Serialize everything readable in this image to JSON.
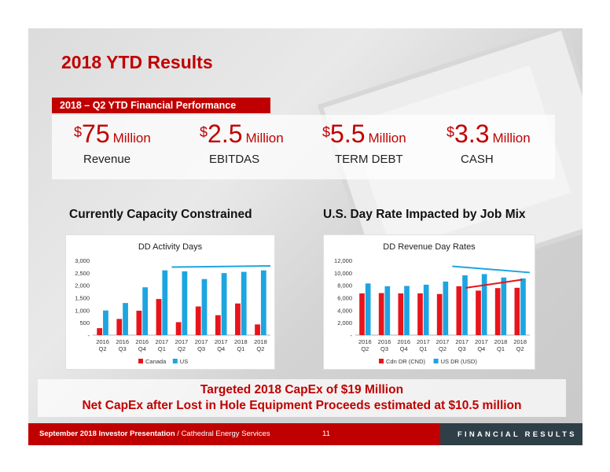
{
  "slide": {
    "title": "2018 YTD Results",
    "section_label": "2018 – Q2 YTD Financial Performance"
  },
  "kpis": [
    {
      "sign": "$",
      "value": "75",
      "unit": "Million",
      "label": "Revenue"
    },
    {
      "sign": "$",
      "value": "2.5",
      "unit": "Million",
      "label": "EBITDAS"
    },
    {
      "sign": "$",
      "value": "5.5",
      "unit": "Million",
      "label": "TERM DEBT"
    },
    {
      "sign": "$",
      "value": "3.3",
      "unit": "Million",
      "label": "CASH"
    }
  ],
  "subtitles": {
    "left": "Currently Capacity Constrained",
    "right": "U.S. Day Rate Impacted by Job Mix"
  },
  "chart_data": [
    {
      "type": "bar",
      "title": "DD Activity Days",
      "categories": [
        [
          "2016",
          "Q2"
        ],
        [
          "2016",
          "Q3"
        ],
        [
          "2016",
          "Q4"
        ],
        [
          "2017",
          "Q1"
        ],
        [
          "2017",
          "Q2"
        ],
        [
          "2017",
          "Q3"
        ],
        [
          "2017",
          "Q4"
        ],
        [
          "2018",
          "Q1"
        ],
        [
          "2018",
          "Q2"
        ]
      ],
      "yticks": [
        "-",
        "500",
        "1,000",
        "1,500",
        "2,000",
        "2,500",
        "3,000"
      ],
      "ylim": [
        0,
        3000
      ],
      "series": [
        {
          "name": "Canada",
          "color": "#e8141b",
          "values": [
            280,
            650,
            980,
            1450,
            520,
            1150,
            800,
            1270,
            430
          ]
        },
        {
          "name": "US",
          "color": "#1ea5e0",
          "values": [
            990,
            1290,
            1920,
            2600,
            2560,
            2250,
            2490,
            2540,
            2600
          ]
        }
      ],
      "trendlines": [
        {
          "color": "#1ea5e0",
          "from": [
            4,
            2730
          ],
          "to": [
            9,
            2780
          ]
        }
      ]
    },
    {
      "type": "bar",
      "title": "DD Revenue Day Rates",
      "categories": [
        [
          "2016",
          "Q2"
        ],
        [
          "2016",
          "Q3"
        ],
        [
          "2016",
          "Q4"
        ],
        [
          "2017",
          "Q1"
        ],
        [
          "2017",
          "Q2"
        ],
        [
          "2017",
          "Q3"
        ],
        [
          "2017",
          "Q4"
        ],
        [
          "2018",
          "Q1"
        ],
        [
          "2018",
          "Q2"
        ]
      ],
      "yticks": [
        "-",
        "2,000",
        "4,000",
        "6,000",
        "8,000",
        "10,000",
        "12,000"
      ],
      "ylim": [
        0,
        12000
      ],
      "series": [
        {
          "name": "Cdn DR (CND)",
          "color": "#e8141b",
          "values": [
            6700,
            6750,
            6700,
            6700,
            6600,
            7850,
            7150,
            7550,
            7600
          ]
        },
        {
          "name": "US DR (USD)",
          "color": "#1ea5e0",
          "values": [
            8300,
            7850,
            7900,
            8100,
            8600,
            9600,
            9800,
            9250,
            9100
          ]
        }
      ],
      "trendlines": [
        {
          "color": "#1ea5e0",
          "from": [
            5,
            11050
          ],
          "to": [
            9,
            10050
          ]
        },
        {
          "color": "#e8141b",
          "from": [
            5.7,
            7600
          ],
          "to": [
            8.6,
            8900
          ]
        }
      ]
    }
  ],
  "capex": {
    "line1": "Targeted 2018 CapEx of $19 Million",
    "line2": "Net CapEx after Lost in Hole Equipment Proceeds estimated at $10.5 million"
  },
  "footer": {
    "presentation": "September 2018 Investor Presentation",
    "company": " / Cathedral Energy Services",
    "page": "11",
    "section": "FINANCIAL RESULTS"
  },
  "colors": {
    "brand_red": "#c00000",
    "footer_dark": "#2f3f48"
  }
}
